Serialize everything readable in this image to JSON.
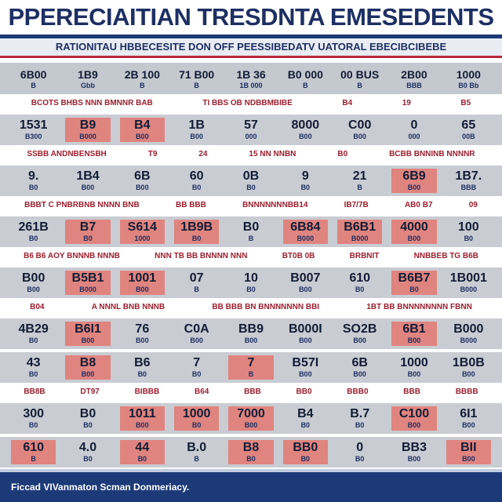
{
  "header": {
    "title": "PPERECIAITIAN TRESDNTA EMESEDENTS",
    "subtitle": "RATIONITAU HBBECESITE DON OFF PEESSIBEDATV UATORAL EBECIBCIBEBE"
  },
  "table": {
    "columns": [
      [
        "6B00",
        "B"
      ],
      [
        "1B9",
        "Gbb"
      ],
      [
        "2B 100",
        "B"
      ],
      [
        "71 B00",
        "B"
      ],
      [
        "1B 36",
        "1B 000"
      ],
      [
        "B0 000",
        "B"
      ],
      [
        "00 BUS",
        "B"
      ],
      [
        "2B00",
        "BBB"
      ],
      [
        "1000",
        "B0 Bb"
      ]
    ],
    "rows": [
      {
        "labels": [
          "BCOTS BHBS NNN BMNNR BAB",
          "TI BBS OB NDBBMBIBE",
          "B4",
          "19",
          "B5"
        ]
      },
      {
        "cells": [
          [
            "1531",
            "B300"
          ],
          [
            "B9",
            "B000"
          ],
          [
            "B4",
            "B00"
          ],
          [
            "1B",
            "B00"
          ],
          [
            "57",
            "000"
          ],
          [
            "8000",
            "B00"
          ],
          [
            "C00",
            "B00"
          ],
          [
            "0",
            "000"
          ],
          [
            "65",
            "00B"
          ]
        ],
        "highlight": [
          1,
          2
        ]
      },
      {
        "labels": [
          "SSBB ANDNBENSBH",
          "T9",
          "24",
          "15 NN NNBN",
          "B0",
          "BCBB BNNINB NNNNR"
        ]
      },
      {
        "cells": [
          [
            "9.",
            "B0"
          ],
          [
            "1B4",
            "B00"
          ],
          [
            "6B",
            "B00"
          ],
          [
            "60",
            "B0"
          ],
          [
            "0B",
            "B0"
          ],
          [
            "9",
            "B0"
          ],
          [
            "21",
            "B"
          ],
          [
            "6B9",
            "B00"
          ],
          [
            "1B7.",
            "BBB"
          ]
        ],
        "highlight": [
          7
        ]
      },
      {
        "labels": [
          "BBBT C PNBRBNB NNNN BNB",
          "BB BBB",
          "BNNNNNNNBB14",
          "IB7/7B",
          "AB0 B7",
          "09"
        ]
      },
      {
        "cells": [
          [
            "261B",
            "B0"
          ],
          [
            "B7",
            "B0"
          ],
          [
            "S614",
            "1000"
          ],
          [
            "1B9B",
            "B0"
          ],
          [
            "B0",
            "B"
          ],
          [
            "6B84",
            "B000"
          ],
          [
            "B6B1",
            "B000"
          ],
          [
            "4000",
            "B00"
          ],
          [
            "100",
            "B0"
          ]
        ],
        "highlight": [
          1,
          2,
          3,
          5,
          6,
          7
        ]
      },
      {
        "labels": [
          "B6 B6 AOY BNNNB NNNB",
          "NNN TB BB BNNNN NNN",
          "BT0B 0B",
          "BRBNIT",
          "NNBBEB TG B6B"
        ]
      },
      {
        "cells": [
          [
            "B00",
            "B00"
          ],
          [
            "B5B1",
            "B000"
          ],
          [
            "1001",
            "B00"
          ],
          [
            "07",
            "B"
          ],
          [
            "10",
            "B0"
          ],
          [
            "B007",
            "B00"
          ],
          [
            "610",
            "B0"
          ],
          [
            "B6B7",
            "B0"
          ],
          [
            "1B001",
            "B000"
          ]
        ],
        "highlight": [
          1,
          2,
          7
        ]
      },
      {
        "labels": [
          "B04",
          "A NNNL BNB NNNB",
          "BB BBB BN BNNNNNNN BBI",
          "1BT BB BNNNNNNNN FBNN"
        ]
      },
      {
        "cells": [
          [
            "4B29",
            "B0"
          ],
          [
            "B6I1",
            "B00"
          ],
          [
            "76",
            "B00"
          ],
          [
            "C0A",
            "B00"
          ],
          [
            "BB9",
            "B00"
          ],
          [
            "B000I",
            "B00"
          ],
          [
            "SO2B",
            "B00"
          ],
          [
            "6B1",
            "B00"
          ],
          [
            "B000",
            "B000"
          ]
        ],
        "highlight": [
          1,
          7
        ]
      },
      {
        "cells": [
          [
            "43",
            "B0"
          ],
          [
            "B8",
            "B00"
          ],
          [
            "B6",
            "B0"
          ],
          [
            "7",
            "B0"
          ],
          [
            "7",
            "B"
          ],
          [
            "B57I",
            "B00"
          ],
          [
            "6B",
            "B00"
          ],
          [
            "1000",
            "B00"
          ],
          [
            "1B0B",
            "B00"
          ]
        ],
        "highlight": [
          1,
          4
        ]
      },
      {
        "labels": [
          "BB8B",
          "DT97",
          "BIBBB",
          "B64",
          "BBB",
          "BB0",
          "BBB0",
          "BBB",
          "BBBB"
        ]
      },
      {
        "cells": [
          [
            "300",
            "B0"
          ],
          [
            "B0",
            "B0"
          ],
          [
            "1011",
            "B00"
          ],
          [
            "1000",
            "B0"
          ],
          [
            "7000",
            "B00"
          ],
          [
            "B4",
            "B0"
          ],
          [
            "B.7",
            "B0"
          ],
          [
            "C100",
            "B00"
          ],
          [
            "6I1",
            "B00"
          ]
        ],
        "highlight": [
          2,
          3,
          4,
          7
        ]
      },
      {
        "cells": [
          [
            "610",
            "B"
          ],
          [
            "4.0",
            "B0"
          ],
          [
            "44",
            "B0"
          ],
          [
            "B.0",
            "B"
          ],
          [
            "B8",
            "B0"
          ],
          [
            "BB0",
            "B0"
          ],
          [
            "0",
            "B0"
          ],
          [
            "BB3",
            "B00"
          ],
          [
            "BII",
            "B00"
          ]
        ],
        "highlight": [
          0,
          2,
          4,
          5,
          8
        ]
      }
    ]
  },
  "footer": {
    "text": "Ficcad VIVanmaton Scman Donmeriacy."
  }
}
